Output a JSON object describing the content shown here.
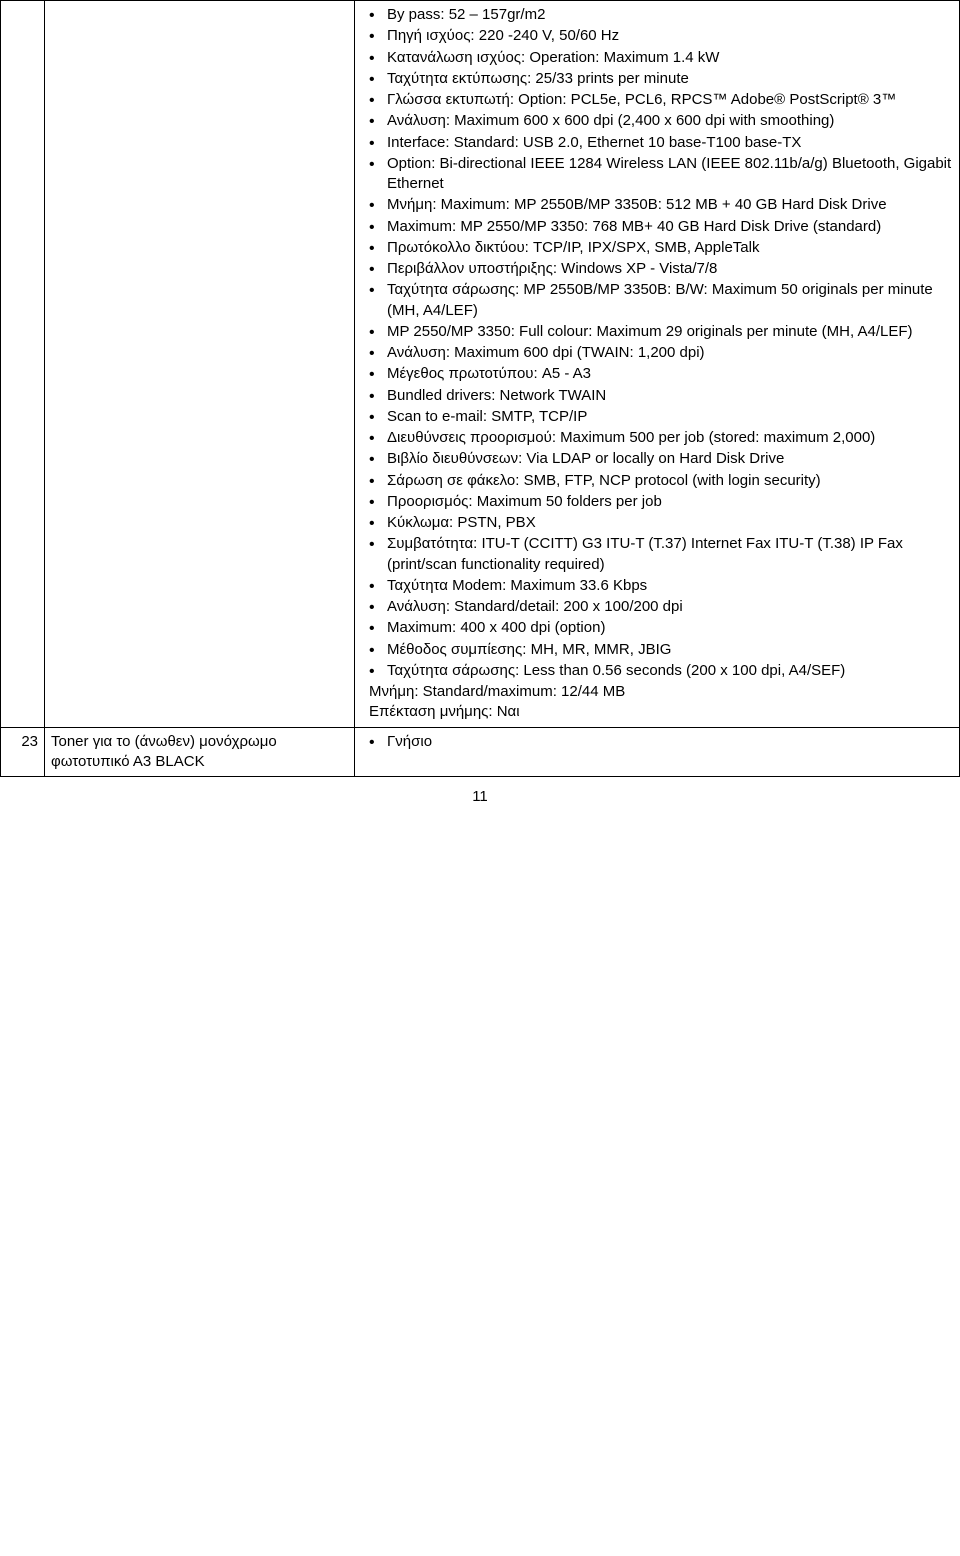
{
  "row1": {
    "num": "",
    "desc": "",
    "specs": [
      "By pass: 52 – 157gr/m2",
      "Πηγή ισχύος: 220 -240 V, 50/60 Hz",
      "Κατανάλωση ισχύος: Operation: Maximum 1.4 kW",
      "Ταχύτητα εκτύπωσης: 25/33 prints per minute",
      "Γλώσσα εκτυπωτή: Option: PCL5e, PCL6, RPCS™ Adobe® PostScript® 3™",
      "Ανάλυση: Maximum 600 x 600 dpi (2,400 x 600 dpi with smoothing)",
      "Interface: Standard: USB 2.0, Ethernet 10 base-T100 base-TX",
      "Option: Bi-directional IEEE 1284 Wireless LAN (IEEE 802.11b/a/g) Bluetooth, Gigabit Ethernet",
      "Μνήμη: Maximum: MP 2550B/MP 3350B: 512 MB + 40 GB Hard Disk Drive",
      "Maximum: MP 2550/MP 3350: 768 MB+ 40 GB Hard Disk Drive (standard)",
      "Πρωτόκολλο δικτύου: TCP/IP, IPX/SPX, SMB, AppleTalk",
      "Περιβάλλον υποστήριξης: Windows XP - Vista/7/8",
      "Ταχύτητα σάρωσης: MP 2550B/MP 3350B: B/W: Maximum 50 originals per minute (MH, A4/LEF)",
      "MP 2550/MP 3350: Full colour: Maximum 29 originals per minute (MH, A4/LEF)",
      "Ανάλυση: Maximum 600 dpi (TWAIN: 1,200 dpi)",
      "Μέγεθος πρωτοτύπου: A5 - A3",
      "Bundled drivers: Network TWAIN",
      "Scan to e-mail: SMTP, TCP/IP",
      "Διευθύνσεις προορισμού: Maximum 500 per job (stored: maximum 2,000)",
      "Βιβλίο διευθύνσεων: Via LDAP or locally on Hard Disk Drive",
      "Σάρωση σε φάκελο: SMB, FTP, NCP protocol (with login security)",
      "Προορισμός: Maximum 50 folders per job",
      "Κύκλωμα: PSTN, PBX",
      "Συμβατότητα: ITU-T (CCITT) G3 ITU-T (T.37) Internet Fax ITU-T (T.38) IP Fax (print/scan functionality required)",
      "Ταχύτητα Modem: Maximum 33.6 Kbps",
      "Ανάλυση: Standard/detail: 200 x 100/200 dpi",
      "Maximum: 400 x 400 dpi (option)",
      "Μέθοδος συμπίεσης: MH, MR, MMR, JBIG",
      "Ταχύτητα σάρωσης: Less than 0.56 seconds (200 x 100 dpi, A4/SEF)"
    ],
    "trailing": [
      "Μνήμη: Standard/maximum: 12/44 MB",
      "Επέκταση μνήμης: Ναι"
    ]
  },
  "row2": {
    "num": "23",
    "desc": "Toner για το (άνωθεν) μονόχρωμο φωτοτυπικό Α3 BLACK",
    "specs": [
      "Γνήσιο"
    ]
  },
  "page_number": "11"
}
